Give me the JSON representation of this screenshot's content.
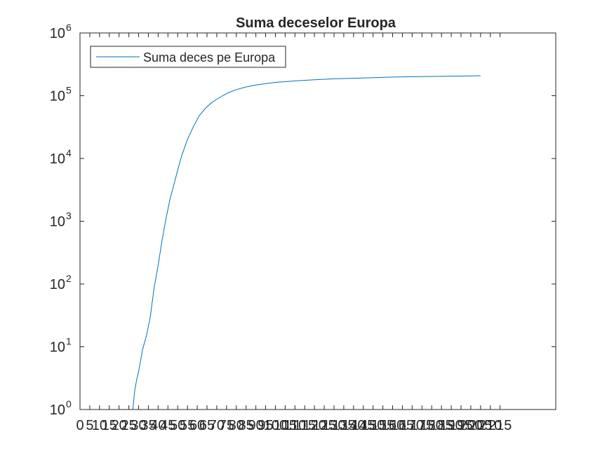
{
  "chart_data": {
    "type": "line",
    "title": "Suma deceselor Europa",
    "xlabel": "",
    "ylabel": "",
    "y_scale": "log",
    "ylim": [
      1,
      1000000
    ],
    "xlim": [
      0,
      215
    ],
    "grid": false,
    "legend_position": "top-left",
    "line_color": "#0072bd",
    "x_ticks": [
      0,
      5,
      10,
      15,
      20,
      25,
      30,
      35,
      40,
      45,
      50,
      55,
      60,
      65,
      70,
      75,
      80,
      85,
      90,
      95,
      100,
      105,
      110,
      115,
      120,
      125,
      130,
      135,
      140,
      145,
      150,
      155,
      160,
      165,
      170,
      175,
      180,
      185,
      190,
      195,
      200,
      205,
      210,
      215
    ],
    "x_tick_labels": [
      "0",
      "5",
      "10",
      "15",
      "20",
      "25",
      "30",
      "35",
      "40",
      "45",
      "50",
      "55",
      "60",
      "65",
      "70",
      "75",
      "80",
      "85",
      "90",
      "95",
      "100",
      "105",
      "110",
      "115",
      "120",
      "125",
      "130",
      "135",
      "140",
      "145",
      "150",
      "155",
      "160",
      "165",
      "170",
      "175",
      "180",
      "185",
      "190",
      "195",
      "200",
      "205",
      "210",
      "215"
    ],
    "y_ticks": [
      {
        "base": "10",
        "exp": "0",
        "value": 1
      },
      {
        "base": "10",
        "exp": "1",
        "value": 10
      },
      {
        "base": "10",
        "exp": "2",
        "value": 100
      },
      {
        "base": "10",
        "exp": "3",
        "value": 1000
      },
      {
        "base": "10",
        "exp": "4",
        "value": 10000
      },
      {
        "base": "10",
        "exp": "5",
        "value": 100000
      },
      {
        "base": "10",
        "exp": "6",
        "value": 1000000
      }
    ],
    "series": [
      {
        "name": "Suma deces pe Europa",
        "x": [
          27,
          28,
          29,
          30,
          32,
          34,
          36,
          38,
          40,
          42,
          44,
          46,
          48,
          50,
          52,
          55,
          58,
          61,
          64,
          67,
          70,
          73,
          76,
          80,
          85,
          90,
          95,
          100,
          110,
          120,
          130,
          140,
          150,
          160,
          170,
          180,
          190,
          200,
          205
        ],
        "y": [
          1,
          2,
          3,
          4,
          9,
          15,
          30,
          90,
          200,
          500,
          1100,
          2200,
          3800,
          6500,
          11000,
          20000,
          32000,
          48000,
          62000,
          76000,
          88000,
          100000,
          112000,
          125000,
          138000,
          148000,
          156000,
          163000,
          172000,
          180000,
          186000,
          190000,
          194000,
          198000,
          201000,
          203000,
          205000,
          207000,
          208000
        ]
      }
    ]
  }
}
